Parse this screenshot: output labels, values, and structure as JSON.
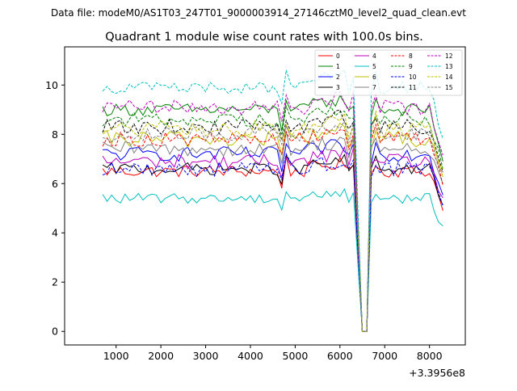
{
  "chart_data": {
    "type": "line",
    "suptitle": "Data file: modeM0/AS1T03_247T01_9000003914_27146cztM0_level2_quad_clean.evt",
    "title": "Quadrant 1 module wise count rates with 100.0s bins.",
    "xlabel": "",
    "ylabel": "",
    "x_offset_label": "+3.3956e8",
    "xlim": [
      -150,
      8800
    ],
    "ylim": [
      -0.55,
      11.55
    ],
    "xticks": [
      1000,
      2000,
      3000,
      4000,
      5000,
      6000,
      7000,
      8000
    ],
    "xtick_labels": [
      "1000",
      "2000",
      "3000",
      "4000",
      "5000",
      "6000",
      "7000",
      "8000"
    ],
    "yticks": [
      0,
      2,
      4,
      6,
      8,
      10
    ],
    "ytick_labels": [
      "0",
      "2",
      "4",
      "6",
      "8",
      "10"
    ],
    "x_start": 700,
    "x_step": 100,
    "legend_position": "top-right",
    "legend_columns": 4,
    "series": [
      {
        "name": "0",
        "color": "#ff0000",
        "style": "solid",
        "base": 6.5,
        "amp": 0.25
      },
      {
        "name": "1",
        "color": "#008000",
        "style": "solid",
        "base": 9.0,
        "amp": 0.25
      },
      {
        "name": "2",
        "color": "#0000ff",
        "style": "solid",
        "base": 7.2,
        "amp": 0.3
      },
      {
        "name": "3",
        "color": "#000000",
        "style": "solid",
        "base": 6.6,
        "amp": 0.25
      },
      {
        "name": "4",
        "color": "#bf00bf",
        "style": "solid",
        "base": 6.9,
        "amp": 0.3
      },
      {
        "name": "5",
        "color": "#00bfbf",
        "style": "solid",
        "base": 5.4,
        "amp": 0.2
      },
      {
        "name": "6",
        "color": "#bfbf00",
        "style": "solid",
        "base": 7.8,
        "amp": 0.35
      },
      {
        "name": "7",
        "color": "#808080",
        "style": "solid",
        "base": 7.4,
        "amp": 0.3
      },
      {
        "name": "8",
        "color": "#ff0000",
        "style": "dashed",
        "base": 7.8,
        "amp": 0.3
      },
      {
        "name": "9",
        "color": "#008000",
        "style": "dashed",
        "base": 8.6,
        "amp": 0.3
      },
      {
        "name": "10",
        "color": "#0000ff",
        "style": "dashed",
        "base": 6.6,
        "amp": 0.3
      },
      {
        "name": "11",
        "color": "#000000",
        "style": "dashed",
        "base": 8.3,
        "amp": 0.3
      },
      {
        "name": "12",
        "color": "#bf00bf",
        "style": "dashed",
        "base": 9.1,
        "amp": 0.3
      },
      {
        "name": "13",
        "color": "#00bfbf",
        "style": "dashed",
        "base": 9.9,
        "amp": 0.25
      },
      {
        "name": "14",
        "color": "#bfbf00",
        "style": "dashed",
        "base": 8.2,
        "amp": 0.35
      },
      {
        "name": "15",
        "color": "#808080",
        "style": "dashed",
        "base": 8.0,
        "amp": 0.3
      }
    ]
  }
}
